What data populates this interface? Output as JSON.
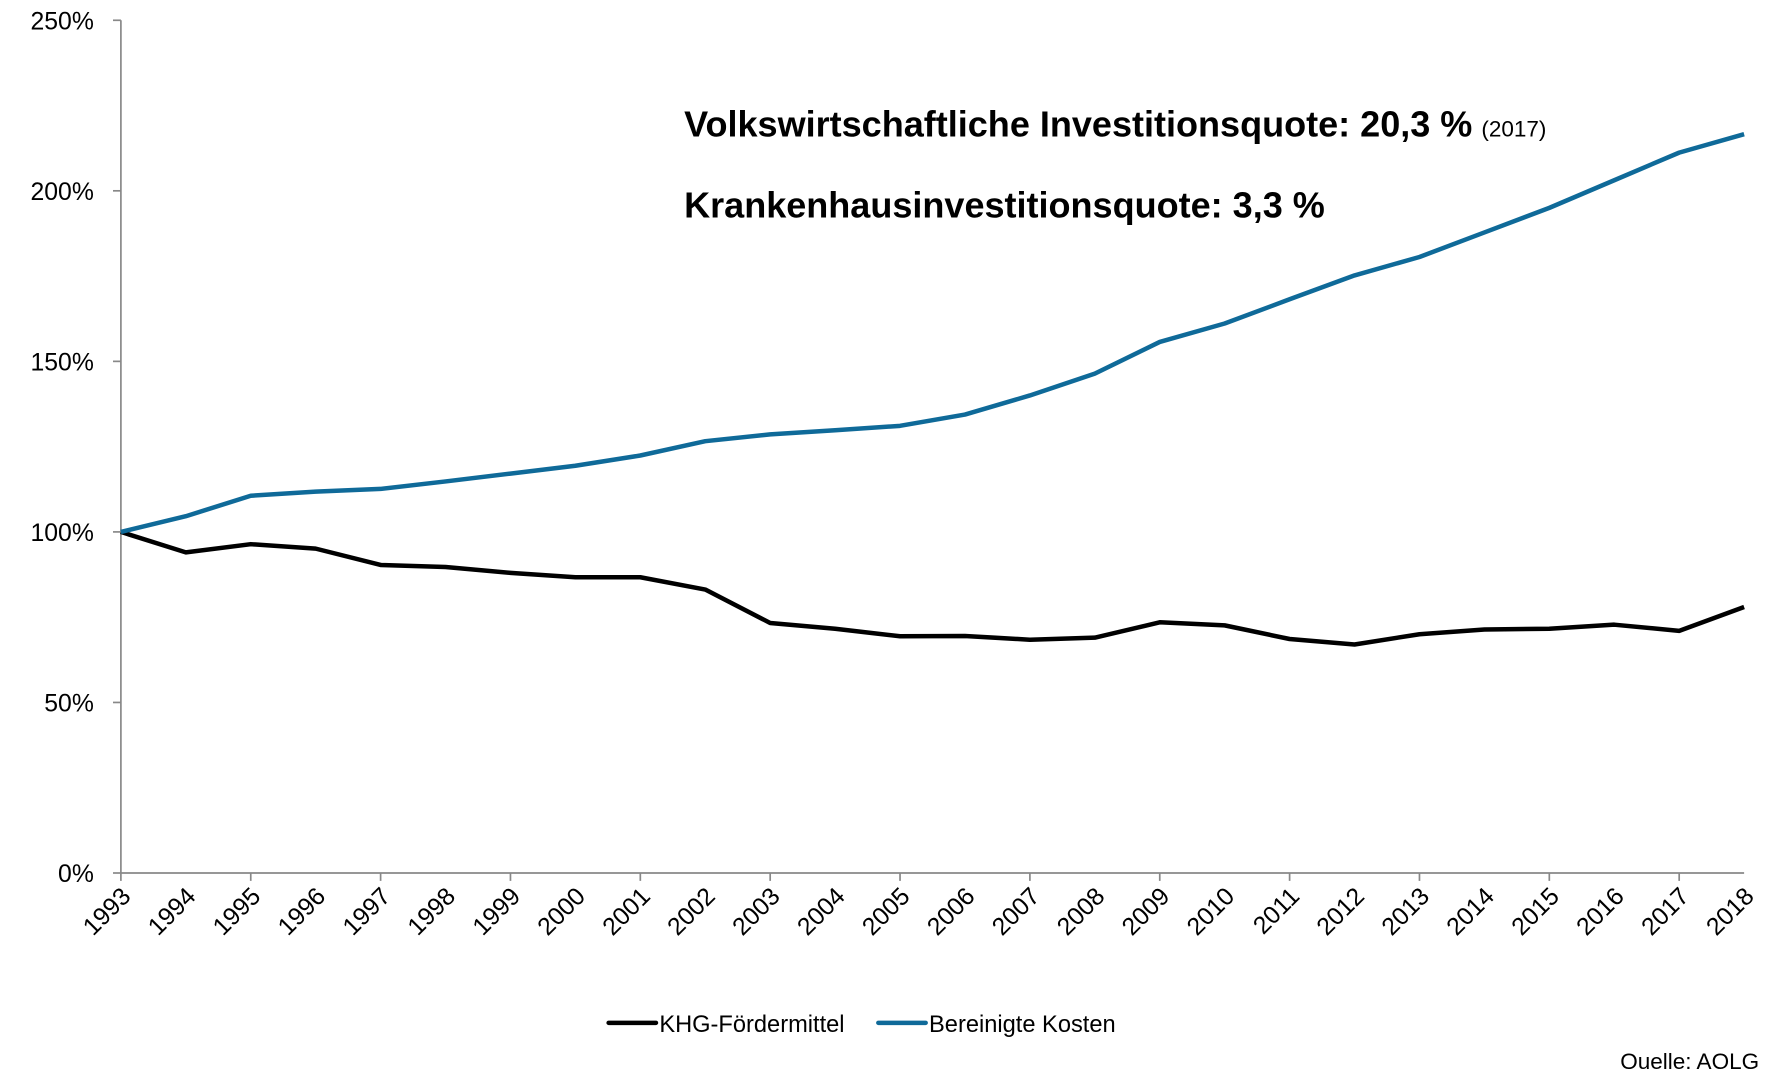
{
  "chart_data": {
    "type": "line",
    "annotations": [
      "Volkswirtschaftliche Investitionsquote: 20,3 %",
      "(2017)",
      "Krankenhausinvestitionsquote: 3,3 %"
    ],
    "source": "Quelle: AOLG",
    "categories": [
      "1993",
      "1994",
      "1995",
      "1996",
      "1997",
      "1998",
      "1999",
      "2000",
      "2001",
      "2002",
      "2003",
      "2004",
      "2005",
      "2006",
      "2007",
      "2008",
      "2009",
      "2010",
      "2011",
      "2012",
      "2013",
      "2014",
      "2015",
      "2016",
      "2017",
      "2018"
    ],
    "series": [
      {
        "name": "KHG-Fördermittel",
        "color": "#000000",
        "values": [
          100,
          94,
          96.4,
          95.1,
          90.3,
          89.7,
          88,
          86.7,
          86.7,
          83.1,
          73.3,
          71.6,
          69.4,
          69.5,
          68.4,
          69,
          73.5,
          72.6,
          68.6,
          67,
          70,
          71.4,
          71.6,
          72.8,
          71,
          78
        ]
      },
      {
        "name": "Bereinigte Kosten",
        "color": "#0f6a99",
        "values": [
          100,
          104.6,
          110.6,
          111.8,
          112.6,
          114.8,
          117.1,
          119.4,
          122.4,
          126.6,
          128.6,
          129.8,
          131.1,
          134.4,
          140,
          146.4,
          155.7,
          161.1,
          168.2,
          175.2,
          180.6,
          187.8,
          195,
          203.1,
          211.2,
          216.6
        ]
      }
    ],
    "ylim": [
      0,
      250
    ],
    "yticks": [
      {
        "value": 0,
        "label": "0%"
      },
      {
        "value": 50,
        "label": "50%"
      },
      {
        "value": 100,
        "label": "100%"
      },
      {
        "value": 150,
        "label": "150%"
      },
      {
        "value": 200,
        "label": "200%"
      },
      {
        "value": 250,
        "label": "250%"
      }
    ],
    "grid": false,
    "legend": "bottom"
  }
}
